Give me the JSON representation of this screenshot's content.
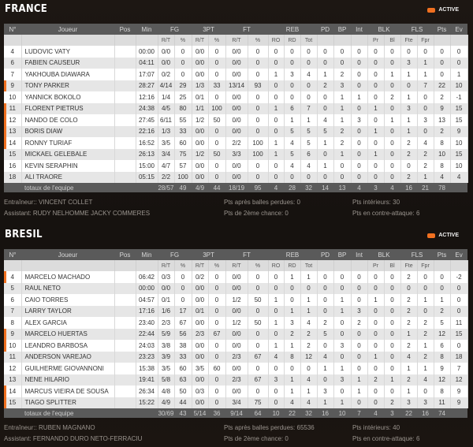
{
  "status_label": "ACTIVE",
  "colors": {
    "accent": "#f07020",
    "header": "#5a5a5a"
  },
  "columns": {
    "top": [
      "N°",
      "Joueur",
      "Pos",
      "Min",
      "FG",
      "3PT",
      "FT",
      "REB",
      "PD",
      "BP",
      "Int",
      "BLK",
      "FLS",
      "Pts",
      "Ev"
    ],
    "sub": {
      "fg_rt": "R/T",
      "fg_pct": "%",
      "tp_rt": "R/T",
      "tp_pct": "%",
      "ft_rt": "R/T",
      "ft_pct": "%",
      "ro": "RO",
      "rd": "RD",
      "tot": "Tot",
      "pr": "Pr",
      "bl": "Bl",
      "fte": "Fte",
      "fpr": "Fpr"
    }
  },
  "teams": [
    {
      "name": "FRANCE",
      "players": [
        {
          "num": "4",
          "name": "LUDOVIC VATY",
          "pos": "",
          "min": "00:00",
          "starter": false,
          "stats": [
            "0/0",
            "0",
            "0/0",
            "0",
            "0/0",
            "0",
            "0",
            "0",
            "0",
            "0",
            "0",
            "0",
            "0",
            "0",
            "0",
            "0",
            "0",
            "0"
          ]
        },
        {
          "num": "6",
          "name": "FABIEN CAUSEUR",
          "pos": "",
          "min": "04:11",
          "starter": false,
          "stats": [
            "0/0",
            "0",
            "0/0",
            "0",
            "0/0",
            "0",
            "0",
            "0",
            "0",
            "0",
            "0",
            "0",
            "0",
            "0",
            "3",
            "1",
            "0",
            "0"
          ]
        },
        {
          "num": "7",
          "name": "YAKHOUBA DIAWARA",
          "pos": "",
          "min": "17:07",
          "starter": false,
          "stats": [
            "0/2",
            "0",
            "0/0",
            "0",
            "0/0",
            "0",
            "1",
            "3",
            "4",
            "1",
            "2",
            "0",
            "0",
            "1",
            "1",
            "1",
            "0",
            "1"
          ]
        },
        {
          "num": "9",
          "name": "TONY PARKER",
          "pos": "",
          "min": "28:27",
          "starter": true,
          "stats": [
            "4/14",
            "29",
            "1/3",
            "33",
            "13/14",
            "93",
            "0",
            "0",
            "0",
            "2",
            "3",
            "0",
            "0",
            "0",
            "0",
            "7",
            "22",
            "10"
          ]
        },
        {
          "num": "10",
          "name": "YANNICK BOKOLO",
          "pos": "",
          "min": "12:16",
          "starter": false,
          "stats": [
            "1/4",
            "25",
            "0/1",
            "0",
            "0/0",
            "0",
            "0",
            "0",
            "0",
            "0",
            "1",
            "1",
            "0",
            "2",
            "1",
            "0",
            "2",
            "-1"
          ]
        },
        {
          "num": "11",
          "name": "FLORENT PIETRUS",
          "pos": "",
          "min": "24:38",
          "starter": true,
          "stats": [
            "4/5",
            "80",
            "1/1",
            "100",
            "0/0",
            "0",
            "1",
            "6",
            "7",
            "0",
            "1",
            "0",
            "1",
            "0",
            "3",
            "0",
            "9",
            "15"
          ]
        },
        {
          "num": "12",
          "name": "NANDO DE COLO",
          "pos": "",
          "min": "27:45",
          "starter": true,
          "stats": [
            "6/11",
            "55",
            "1/2",
            "50",
            "0/0",
            "0",
            "0",
            "1",
            "1",
            "4",
            "1",
            "3",
            "0",
            "1",
            "1",
            "3",
            "13",
            "15"
          ]
        },
        {
          "num": "13",
          "name": "BORIS DIAW",
          "pos": "",
          "min": "22:16",
          "starter": true,
          "stats": [
            "1/3",
            "33",
            "0/0",
            "0",
            "0/0",
            "0",
            "0",
            "5",
            "5",
            "5",
            "2",
            "0",
            "1",
            "0",
            "1",
            "0",
            "2",
            "9"
          ]
        },
        {
          "num": "14",
          "name": "RONNY TURIAF",
          "pos": "",
          "min": "16:52",
          "starter": true,
          "stats": [
            "3/5",
            "60",
            "0/0",
            "0",
            "2/2",
            "100",
            "1",
            "4",
            "5",
            "1",
            "2",
            "0",
            "0",
            "0",
            "2",
            "4",
            "8",
            "10"
          ]
        },
        {
          "num": "15",
          "name": "MICKAEL GELEBALE",
          "pos": "",
          "min": "26:13",
          "starter": false,
          "stats": [
            "3/4",
            "75",
            "1/2",
            "50",
            "3/3",
            "100",
            "1",
            "5",
            "6",
            "0",
            "1",
            "0",
            "1",
            "0",
            "2",
            "2",
            "10",
            "15"
          ]
        },
        {
          "num": "16",
          "name": "KEVIN SERAPHIN",
          "pos": "",
          "min": "15:00",
          "starter": false,
          "stats": [
            "4/7",
            "57",
            "0/0",
            "0",
            "0/0",
            "0",
            "0",
            "4",
            "4",
            "1",
            "0",
            "0",
            "0",
            "0",
            "0",
            "2",
            "8",
            "10"
          ]
        },
        {
          "num": "18",
          "name": "ALI TRAORE",
          "pos": "",
          "min": "05:15",
          "starter": false,
          "stats": [
            "2/2",
            "100",
            "0/0",
            "0",
            "0/0",
            "0",
            "0",
            "0",
            "0",
            "0",
            "0",
            "0",
            "0",
            "0",
            "2",
            "1",
            "4",
            "4"
          ]
        }
      ],
      "totals": {
        "label": "totaux de l'equipe",
        "stats": [
          "28/57",
          "49",
          "4/9",
          "44",
          "18/19",
          "95",
          "4",
          "28",
          "32",
          "14",
          "13",
          "4",
          "3",
          "4",
          "16",
          "21",
          "78",
          ""
        ]
      },
      "coach": "Entraîneur:: VINCENT COLLET",
      "assistant": "Assistant: RUDY NELHOMME JACKY COMMERES",
      "pts_turnovers": "Pts après balles perdues: 0",
      "pts_second_chance": "Pts de 2ème chance: 0",
      "pts_inside": "Pts intérieurs: 30",
      "pts_fastbreak": "Pts en contre-attaque: 6"
    },
    {
      "name": "BRESIL",
      "players": [
        {
          "num": "4",
          "name": "MARCELO MACHADO",
          "pos": "",
          "min": "06:42",
          "starter": true,
          "stats": [
            "0/3",
            "0",
            "0/2",
            "0",
            "0/0",
            "0",
            "0",
            "1",
            "1",
            "0",
            "0",
            "0",
            "0",
            "0",
            "2",
            "0",
            "0",
            "-2"
          ]
        },
        {
          "num": "5",
          "name": "RAUL NETO",
          "pos": "",
          "min": "00:00",
          "starter": false,
          "stats": [
            "0/0",
            "0",
            "0/0",
            "0",
            "0/0",
            "0",
            "0",
            "0",
            "0",
            "0",
            "0",
            "0",
            "0",
            "0",
            "0",
            "0",
            "0",
            "0"
          ]
        },
        {
          "num": "6",
          "name": "CAIO TORRES",
          "pos": "",
          "min": "04:57",
          "starter": false,
          "stats": [
            "0/1",
            "0",
            "0/0",
            "0",
            "1/2",
            "50",
            "1",
            "0",
            "1",
            "0",
            "1",
            "0",
            "1",
            "0",
            "2",
            "1",
            "1",
            "0"
          ]
        },
        {
          "num": "7",
          "name": "LARRY TAYLOR",
          "pos": "",
          "min": "17:16",
          "starter": false,
          "stats": [
            "1/6",
            "17",
            "0/1",
            "0",
            "0/0",
            "0",
            "0",
            "1",
            "1",
            "0",
            "1",
            "3",
            "0",
            "0",
            "2",
            "0",
            "2",
            "0"
          ]
        },
        {
          "num": "8",
          "name": "ALEX GARCIA",
          "pos": "",
          "min": "23:40",
          "starter": false,
          "stats": [
            "2/3",
            "67",
            "0/0",
            "0",
            "1/2",
            "50",
            "1",
            "3",
            "4",
            "2",
            "0",
            "2",
            "0",
            "0",
            "2",
            "2",
            "5",
            "11"
          ]
        },
        {
          "num": "9",
          "name": "MARCELO HUERTAS",
          "pos": "",
          "min": "22:44",
          "starter": true,
          "stats": [
            "5/9",
            "56",
            "2/3",
            "67",
            "0/0",
            "0",
            "0",
            "2",
            "2",
            "5",
            "0",
            "0",
            "0",
            "0",
            "1",
            "2",
            "12",
            "15"
          ]
        },
        {
          "num": "10",
          "name": "LEANDRO BARBOSA",
          "pos": "",
          "min": "24:03",
          "starter": true,
          "stats": [
            "3/8",
            "38",
            "0/0",
            "0",
            "0/0",
            "0",
            "1",
            "1",
            "2",
            "0",
            "3",
            "0",
            "0",
            "0",
            "2",
            "1",
            "6",
            "0"
          ]
        },
        {
          "num": "11",
          "name": "ANDERSON VAREJAO",
          "pos": "",
          "min": "23:23",
          "starter": false,
          "stats": [
            "3/9",
            "33",
            "0/0",
            "0",
            "2/3",
            "67",
            "4",
            "8",
            "12",
            "4",
            "0",
            "0",
            "1",
            "0",
            "4",
            "2",
            "8",
            "18"
          ]
        },
        {
          "num": "12",
          "name": "GUILHERME GIOVANNONI",
          "pos": "",
          "min": "15:38",
          "starter": false,
          "stats": [
            "3/5",
            "60",
            "3/5",
            "60",
            "0/0",
            "0",
            "0",
            "0",
            "0",
            "1",
            "1",
            "0",
            "0",
            "0",
            "1",
            "1",
            "9",
            "7"
          ]
        },
        {
          "num": "13",
          "name": "NENE HILARIO",
          "pos": "",
          "min": "19:41",
          "starter": false,
          "stats": [
            "5/8",
            "63",
            "0/0",
            "0",
            "2/3",
            "67",
            "3",
            "1",
            "4",
            "0",
            "3",
            "1",
            "2",
            "1",
            "2",
            "4",
            "12",
            "12"
          ]
        },
        {
          "num": "14",
          "name": "MARCUS VIEIRA DE SOUSA",
          "pos": "",
          "min": "26:34",
          "starter": true,
          "stats": [
            "4/8",
            "50",
            "0/3",
            "0",
            "0/0",
            "0",
            "0",
            "1",
            "1",
            "3",
            "0",
            "1",
            "0",
            "0",
            "1",
            "0",
            "8",
            "9"
          ]
        },
        {
          "num": "15",
          "name": "TIAGO SPLITTER",
          "pos": "",
          "min": "15:22",
          "starter": true,
          "stats": [
            "4/9",
            "44",
            "0/0",
            "0",
            "3/4",
            "75",
            "0",
            "4",
            "4",
            "1",
            "1",
            "0",
            "0",
            "2",
            "3",
            "3",
            "11",
            "9"
          ]
        }
      ],
      "totals": {
        "label": "totaux de l'equipe",
        "stats": [
          "30/69",
          "43",
          "5/14",
          "36",
          "9/14",
          "64",
          "10",
          "22",
          "32",
          "16",
          "10",
          "7",
          "4",
          "3",
          "22",
          "16",
          "74",
          ""
        ]
      },
      "coach": "Entraîneur:: RUBEN MAGNANO",
      "assistant": "Assistant: FERNANDO DURO NETO-FERRACIU",
      "pts_turnovers": "Pts après balles perdues: 65536",
      "pts_second_chance": "Pts de 2ème chance: 0",
      "pts_inside": "Pts intérieurs: 40",
      "pts_fastbreak": "Pts en contre-attaque: 6"
    }
  ]
}
